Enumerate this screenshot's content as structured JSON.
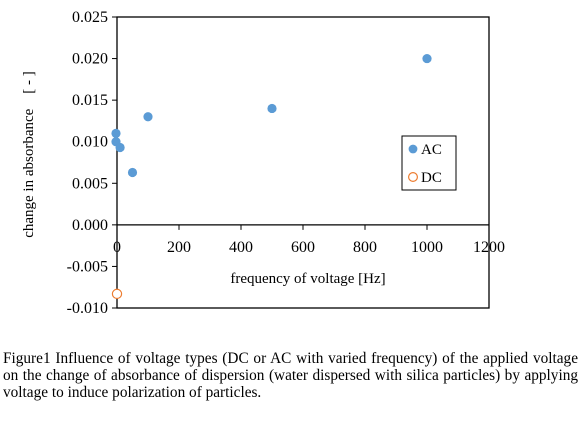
{
  "chart_data": {
    "type": "scatter",
    "title": "",
    "xlabel": "frequency of voltage [Hz]",
    "ylabel": "change in absorbance　[ - ]",
    "xlim": [
      0,
      1200
    ],
    "ylim": [
      -0.01,
      0.025
    ],
    "x_ticks": [
      "0",
      "200",
      "400",
      "600",
      "800",
      "1000",
      "1200"
    ],
    "y_ticks": [
      "0.025",
      "0.020",
      "0.015",
      "0.010",
      "0.005",
      "0.000",
      "-0.005",
      "-0.010"
    ],
    "grid": false,
    "legend_position": "right",
    "series": [
      {
        "name": "AC",
        "marker": "filled-circle",
        "color": "#5b9bd5",
        "points": [
          {
            "x": 0,
            "y": 0.011
          },
          {
            "x": 0,
            "y": 0.01
          },
          {
            "x": 10,
            "y": 0.0093
          },
          {
            "x": 50,
            "y": 0.0063
          },
          {
            "x": 100,
            "y": 0.013
          },
          {
            "x": 500,
            "y": 0.014
          },
          {
            "x": 1000,
            "y": 0.02
          }
        ]
      },
      {
        "name": "DC",
        "marker": "open-circle",
        "color": "#ed7d31",
        "points": [
          {
            "x": 0,
            "y": -0.0083
          }
        ]
      }
    ]
  },
  "caption": "Figure1 Influence of voltage types (DC or AC with varied frequency) of the applied voltage on the change of absorbance of dispersion (water dispersed with silica particles) by applying voltage to induce polarization of particles."
}
